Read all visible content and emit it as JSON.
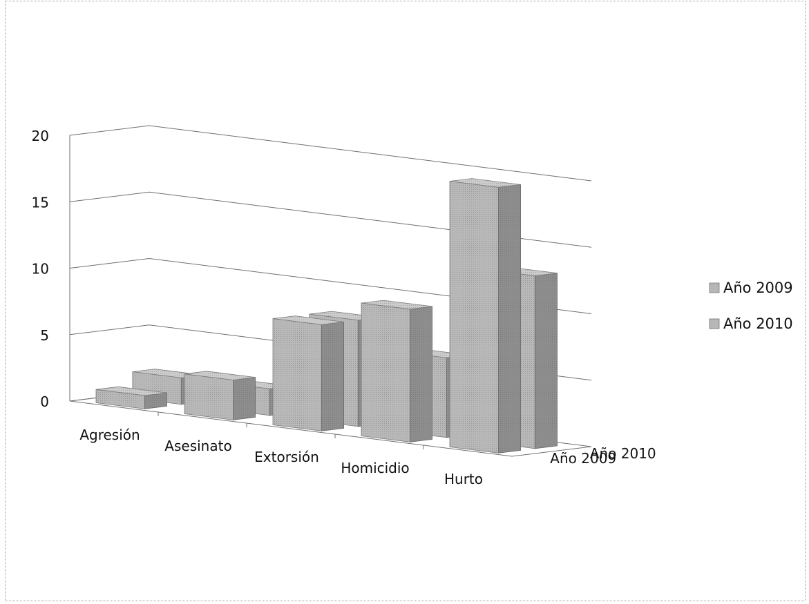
{
  "chart_data": {
    "type": "bar",
    "style": "3d-clustered-depth",
    "title": "",
    "xlabel": "",
    "ylabel": "",
    "categories": [
      "Agresión",
      "Asesinato",
      "Extorsión",
      "Homicidio",
      "Hurto"
    ],
    "series": [
      {
        "name": "Año 2009",
        "values": [
          1,
          3,
          8,
          10,
          20
        ]
      },
      {
        "name": "Año 2010",
        "values": [
          2,
          2,
          8,
          6,
          13
        ]
      }
    ],
    "ylim": [
      0,
      20
    ],
    "yticks": [
      "0",
      "5",
      "10",
      "15",
      "20"
    ],
    "depth_labels": [
      "Año 2010",
      "Año 2009"
    ],
    "legend": {
      "position": "right",
      "entries": [
        "Año 2009",
        "Año 2010"
      ]
    },
    "grid": true,
    "colors": {
      "bar_front": "#b9b9b9",
      "bar_side": "#8e8e8e",
      "bar_top": "#cdcdcd",
      "grid": "#6f6f6f"
    }
  }
}
